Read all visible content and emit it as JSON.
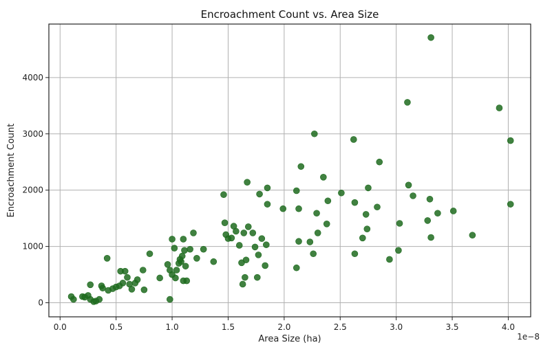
{
  "chart_data": {
    "type": "scatter",
    "title": "Encroachment Count vs. Area Size",
    "xlabel": "Area Size (ha)",
    "ylabel": "Encroachment Count",
    "x_offset_label": "1e−8",
    "xlim": [
      -0.1,
      4.2
    ],
    "ylim": [
      -250,
      4950
    ],
    "xticks": [
      0.0,
      0.5,
      1.0,
      1.5,
      2.0,
      2.5,
      3.0,
      3.5,
      4.0
    ],
    "xtick_labels": [
      "0.0",
      "0.5",
      "1.0",
      "1.5",
      "2.0",
      "2.5",
      "3.0",
      "3.5",
      "4.0"
    ],
    "yticks": [
      0,
      1000,
      2000,
      3000,
      4000
    ],
    "ytick_labels": [
      "0",
      "1000",
      "2000",
      "3000",
      "4000"
    ],
    "grid": true,
    "point_color": "#1e6b1e",
    "points": [
      [
        0.1,
        110
      ],
      [
        0.12,
        60
      ],
      [
        0.2,
        110
      ],
      [
        0.22,
        100
      ],
      [
        0.25,
        130
      ],
      [
        0.27,
        60
      ],
      [
        0.27,
        320
      ],
      [
        0.3,
        20
      ],
      [
        0.32,
        30
      ],
      [
        0.35,
        60
      ],
      [
        0.37,
        300
      ],
      [
        0.38,
        260
      ],
      [
        0.42,
        790
      ],
      [
        0.43,
        220
      ],
      [
        0.47,
        250
      ],
      [
        0.5,
        280
      ],
      [
        0.53,
        300
      ],
      [
        0.54,
        560
      ],
      [
        0.56,
        350
      ],
      [
        0.58,
        560
      ],
      [
        0.6,
        450
      ],
      [
        0.62,
        330
      ],
      [
        0.64,
        240
      ],
      [
        0.67,
        350
      ],
      [
        0.69,
        410
      ],
      [
        0.74,
        580
      ],
      [
        0.75,
        230
      ],
      [
        0.8,
        870
      ],
      [
        0.89,
        440
      ],
      [
        0.96,
        680
      ],
      [
        0.98,
        60
      ],
      [
        0.98,
        580
      ],
      [
        1.0,
        1130
      ],
      [
        1.0,
        500
      ],
      [
        1.02,
        970
      ],
      [
        1.03,
        440
      ],
      [
        1.04,
        580
      ],
      [
        1.06,
        700
      ],
      [
        1.07,
        770
      ],
      [
        1.08,
        730
      ],
      [
        1.09,
        830
      ],
      [
        1.1,
        1130
      ],
      [
        1.1,
        390
      ],
      [
        1.11,
        930
      ],
      [
        1.12,
        650
      ],
      [
        1.13,
        390
      ],
      [
        1.16,
        950
      ],
      [
        1.19,
        1240
      ],
      [
        1.22,
        790
      ],
      [
        1.28,
        950
      ],
      [
        1.37,
        730
      ],
      [
        1.46,
        1920
      ],
      [
        1.47,
        1420
      ],
      [
        1.48,
        1210
      ],
      [
        1.5,
        1140
      ],
      [
        1.53,
        1150
      ],
      [
        1.55,
        1360
      ],
      [
        1.57,
        1270
      ],
      [
        1.6,
        1020
      ],
      [
        1.62,
        710
      ],
      [
        1.63,
        330
      ],
      [
        1.64,
        1240
      ],
      [
        1.65,
        450
      ],
      [
        1.66,
        760
      ],
      [
        1.67,
        2140
      ],
      [
        1.68,
        1350
      ],
      [
        1.72,
        1240
      ],
      [
        1.74,
        990
      ],
      [
        1.76,
        450
      ],
      [
        1.77,
        850
      ],
      [
        1.78,
        1930
      ],
      [
        1.8,
        1140
      ],
      [
        1.83,
        660
      ],
      [
        1.84,
        1030
      ],
      [
        1.85,
        1750
      ],
      [
        1.85,
        2040
      ],
      [
        1.99,
        1670
      ],
      [
        2.11,
        620
      ],
      [
        2.11,
        1990
      ],
      [
        2.13,
        1670
      ],
      [
        2.13,
        1090
      ],
      [
        2.15,
        2420
      ],
      [
        2.23,
        1080
      ],
      [
        2.26,
        870
      ],
      [
        2.27,
        3000
      ],
      [
        2.29,
        1590
      ],
      [
        2.3,
        1240
      ],
      [
        2.35,
        2230
      ],
      [
        2.38,
        1400
      ],
      [
        2.39,
        1810
      ],
      [
        2.51,
        1950
      ],
      [
        2.62,
        2900
      ],
      [
        2.63,
        870
      ],
      [
        2.63,
        1780
      ],
      [
        2.7,
        1150
      ],
      [
        2.73,
        1570
      ],
      [
        2.74,
        1310
      ],
      [
        2.75,
        2040
      ],
      [
        2.83,
        1700
      ],
      [
        2.85,
        2500
      ],
      [
        2.94,
        770
      ],
      [
        3.02,
        930
      ],
      [
        3.03,
        1410
      ],
      [
        3.1,
        3560
      ],
      [
        3.11,
        2090
      ],
      [
        3.15,
        1900
      ],
      [
        3.28,
        1460
      ],
      [
        3.3,
        1840
      ],
      [
        3.31,
        1160
      ],
      [
        3.31,
        4710
      ],
      [
        3.37,
        1590
      ],
      [
        3.51,
        1630
      ],
      [
        3.68,
        1200
      ],
      [
        3.92,
        3460
      ],
      [
        4.02,
        1750
      ],
      [
        4.02,
        2880
      ]
    ]
  }
}
